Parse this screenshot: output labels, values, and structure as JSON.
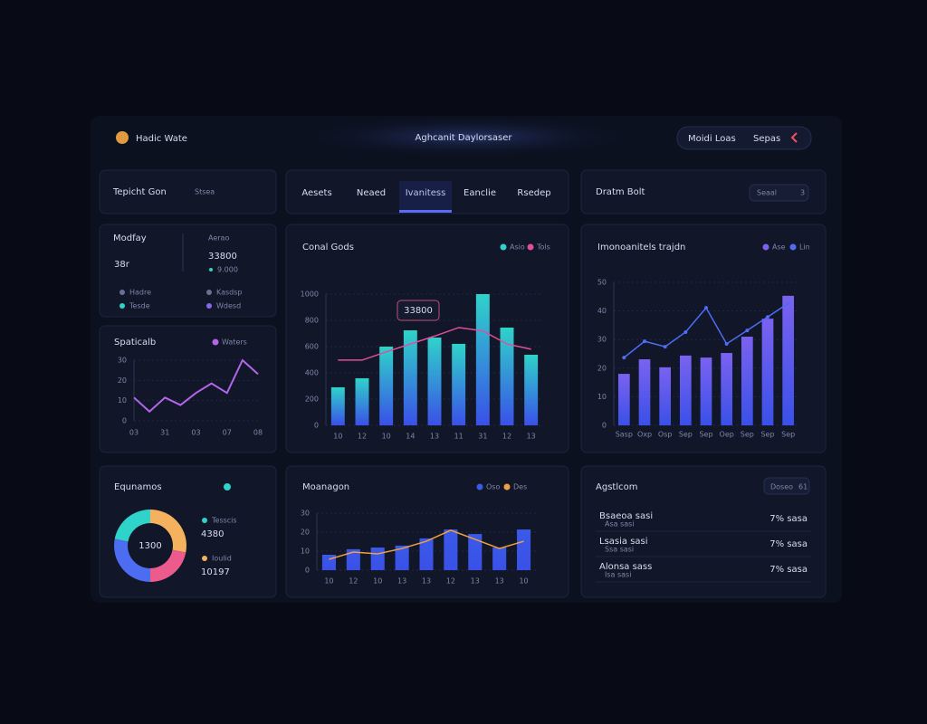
{
  "header": {
    "brand": "Hadic Wate",
    "title": "Aghcanit Daylorsaser",
    "actions": [
      "Moidi Loas",
      "Sepas"
    ]
  },
  "toolbar": {
    "left_title": "Tepicht Gon",
    "left_sub": "Stsea",
    "tabs": [
      "Aesets",
      "Neaed",
      "Ivanitess",
      "Eanclie",
      "Rsedep"
    ],
    "active_tab": 2,
    "right_title": "Dratm Bolt",
    "right_button": "Seaal",
    "right_count": "3"
  },
  "summary": {
    "label": "Modfay",
    "value": "38r",
    "side_label": "Aerao",
    "side_value": "33800",
    "side_note": "9.000",
    "items": [
      {
        "name": "Hadre",
        "color": "#6b6f96"
      },
      {
        "name": "Kasdsp",
        "color": "#6b6f96"
      },
      {
        "name": "Tesde",
        "color": "#2fd3c9"
      },
      {
        "name": "Wdesd",
        "color": "#8a66f0"
      }
    ]
  },
  "chart_data": [
    {
      "type": "line",
      "title": "Spaticalb",
      "categories": [
        "03",
        null,
        "31",
        null,
        "03",
        null,
        "07",
        null,
        "08"
      ],
      "series": [
        {
          "name": "Waters",
          "color": "#b466ea",
          "values": [
            11.5,
            4.6,
            11.5,
            7.8,
            13.8,
            18.5,
            13.8,
            30,
            23.1
          ]
        }
      ],
      "ylim": [
        0,
        30
      ],
      "yticks": [
        0,
        10,
        20,
        30
      ],
      "grid": true
    },
    {
      "type": "bar",
      "title": "Conal Gods",
      "annotation": "33800",
      "categories": [
        "10",
        "12",
        "10",
        "14",
        "13",
        "11",
        "31",
        "12",
        "13"
      ],
      "series": [
        {
          "name": "Asio",
          "color": "#2fd3c9",
          "values": [
            290,
            359,
            600,
            724,
            669,
            621,
            1000,
            745,
            538
          ]
        },
        {
          "name": "Tols",
          "type": "line",
          "color": "#e0509a",
          "values": [
            497,
            497,
            560,
            620,
            680,
            745,
            720,
            620,
            580
          ]
        }
      ],
      "ylim": [
        0,
        1000
      ],
      "yticks": [
        0,
        200,
        400,
        600,
        800,
        1000
      ],
      "grid": true
    },
    {
      "type": "bar",
      "title": "Imonoanitels trajdn",
      "categories": [
        "Sasp",
        "Oxp",
        "Osp",
        "Sep",
        "Sep",
        "Oep",
        "Sep",
        "Sep",
        "Sep"
      ],
      "series": [
        {
          "name": "Ase",
          "color": "#7b62f0",
          "values": [
            18.0,
            23.1,
            20.3,
            24.4,
            23.7,
            25.3,
            31.0,
            37.3,
            45.3
          ]
        },
        {
          "name": "Lin",
          "type": "line",
          "color": "#4f6cf5",
          "values": [
            23.7,
            29.4,
            27.5,
            32.6,
            41.1,
            28.5,
            33.2,
            37.9,
            42.7
          ]
        }
      ],
      "ylim": [
        0,
        50
      ],
      "yticks": [
        0,
        10,
        20,
        30,
        40,
        50
      ],
      "grid": true
    },
    {
      "type": "pie",
      "title": "Equnamos",
      "center_label": "1300",
      "categories": [
        "Orange",
        "Pink",
        "Blue",
        "Teal"
      ],
      "values": [
        28,
        22,
        28,
        22
      ],
      "colors": [
        "#f4b25e",
        "#ec5b8c",
        "#4c6cf2",
        "#2fd3c9"
      ],
      "legend": [
        {
          "label": "Tesscis",
          "value": "4380"
        },
        {
          "label": "Ioulid",
          "value": "10197"
        }
      ]
    },
    {
      "type": "bar",
      "title": "Moanagon",
      "categories": [
        "10",
        "12",
        "10",
        "13",
        "13",
        "12",
        "13",
        "13",
        "10"
      ],
      "series": [
        {
          "name": "Oso",
          "color": "#3a5ae8",
          "values": [
            8.1,
            11,
            11.9,
            12.9,
            16.7,
            21.4,
            19,
            11.9,
            21.4
          ]
        },
        {
          "name": "Des",
          "type": "line",
          "color": "#f0a040",
          "values": [
            5.7,
            9.5,
            8.6,
            11.4,
            15.2,
            21,
            16.2,
            11.4,
            15.2
          ]
        }
      ],
      "ylim": [
        0,
        30
      ],
      "yticks": [
        0,
        10,
        20,
        30
      ],
      "grid": true
    }
  ],
  "activity": {
    "title": "Agstlcom",
    "button": "Doseo",
    "count": "61",
    "rows": [
      {
        "label": "Bsaeoa sasi",
        "sub": "Asa sasi",
        "value": "7% sasa"
      },
      {
        "label": "Lsasia sasi",
        "sub": "Ssa sasi",
        "value": "7% sasa"
      },
      {
        "label": "Alonsa sass",
        "sub": "Isa sasi",
        "value": "7% sasa"
      }
    ]
  }
}
